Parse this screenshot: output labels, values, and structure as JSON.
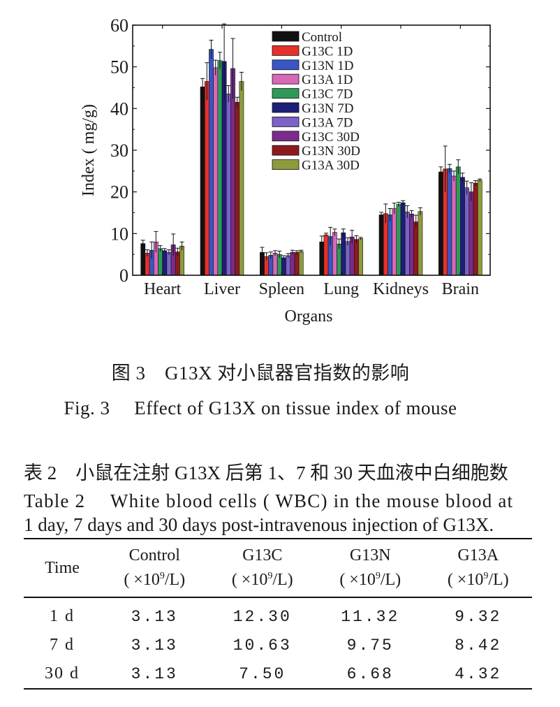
{
  "chart_data": {
    "type": "bar",
    "xlabel": "Organs",
    "ylabel": "Index ( mg/g)",
    "ylim": [
      0,
      60
    ],
    "yticks": [
      0,
      10,
      20,
      30,
      40,
      50,
      60
    ],
    "categories": [
      "Heart",
      "Liver",
      "Spleen",
      "Lung",
      "Kidneys",
      "Brain"
    ],
    "legend_position": "top-right",
    "series": [
      {
        "name": "Control",
        "color": "#111111",
        "values": [
          7.6,
          45.2,
          5.5,
          8.0,
          14.5,
          24.8
        ],
        "errors": [
          0.8,
          2.0,
          1.2,
          1.4,
          0.6,
          1.2
        ]
      },
      {
        "name": "G13C 1D",
        "color": "#e8302a",
        "values": [
          5.3,
          46.5,
          4.5,
          9.7,
          14.8,
          25.5
        ],
        "errors": [
          0.8,
          4.5,
          0.9,
          0.4,
          2.3,
          5.5
        ]
      },
      {
        "name": "G13N 1D",
        "color": "#3a55c4",
        "values": [
          6.0,
          54.2,
          4.8,
          9.3,
          14.5,
          25.6
        ],
        "errors": [
          2.0,
          2.2,
          0.8,
          2.2,
          1.5,
          1.0
        ]
      },
      {
        "name": "G13A 1D",
        "color": "#d868b8",
        "values": [
          8.0,
          49.8,
          5.3,
          10.3,
          16.0,
          23.8
        ],
        "errors": [
          2.5,
          1.8,
          0.6,
          0.8,
          1.3,
          1.2
        ]
      },
      {
        "name": "G13C 7D",
        "color": "#2f9a58",
        "values": [
          6.4,
          51.5,
          5.0,
          7.5,
          17.0,
          26.0
        ],
        "errors": [
          0.7,
          2.0,
          0.8,
          1.2,
          0.5,
          1.7
        ]
      },
      {
        "name": "G13N 7D",
        "color": "#1e1e78",
        "values": [
          5.9,
          51.3,
          4.2,
          10.2,
          17.4,
          23.5
        ],
        "errors": [
          0.5,
          9.0,
          0.5,
          0.9,
          0.5,
          1.0
        ]
      },
      {
        "name": "G13A 7D",
        "color": "#7a62c6",
        "values": [
          5.5,
          43.5,
          4.7,
          8.1,
          15.2,
          21.0
        ],
        "errors": [
          0.6,
          2.0,
          0.5,
          0.9,
          1.5,
          1.6
        ]
      },
      {
        "name": "G13C 30D",
        "color": "#7a2b8c",
        "values": [
          7.3,
          49.6,
          5.5,
          9.2,
          14.7,
          20.0
        ],
        "errors": [
          2.6,
          7.2,
          0.5,
          1.6,
          0.8,
          2.2
        ]
      },
      {
        "name": "G13N 30D",
        "color": "#8e1a20",
        "values": [
          5.6,
          41.5,
          5.5,
          8.6,
          12.8,
          22.1
        ],
        "errors": [
          0.9,
          1.2,
          0.4,
          0.9,
          1.6,
          0.6
        ]
      },
      {
        "name": "G13A 30D",
        "color": "#8e9a3c",
        "values": [
          7.0,
          46.5,
          5.7,
          8.8,
          15.3,
          22.8
        ],
        "errors": [
          1.0,
          2.2,
          0.3,
          0.3,
          0.9,
          0.3
        ]
      }
    ]
  },
  "figure_caption_cn": "图 3　G13X 对小鼠器官指数的影响",
  "figure_caption_en": "Fig. 3　 Effect of G13X on tissue index of mouse",
  "table": {
    "title_cn": "表 2　小鼠在注射 G13X 后第 1、7 和 30 天血液中白细胞数",
    "title_en_1": "Table 2　 White blood cells ( WBC) in the mouse blood at",
    "title_en_2": "1 day, 7 days and 30 days post-intravenous injection of G13X.",
    "headers": [
      {
        "name": "Time",
        "unit": ""
      },
      {
        "name": "Control",
        "unit_pre": "( ×10",
        "unit_exp": "9",
        "unit_post": "/L)"
      },
      {
        "name": "G13C",
        "unit_pre": "( ×10",
        "unit_exp": "9",
        "unit_post": "/L)"
      },
      {
        "name": "G13N",
        "unit_pre": "( ×10",
        "unit_exp": "9",
        "unit_post": "/L)"
      },
      {
        "name": "G13A",
        "unit_pre": "( ×10",
        "unit_exp": "9",
        "unit_post": "/L)"
      }
    ],
    "rows": [
      [
        "1 d",
        "3.13",
        "12.30",
        "11.32",
        "9.32"
      ],
      [
        "7 d",
        "3.13",
        "10.63",
        "9.75",
        "8.42"
      ],
      [
        "30 d",
        "3.13",
        "7.50",
        "6.68",
        "4.32"
      ]
    ]
  }
}
